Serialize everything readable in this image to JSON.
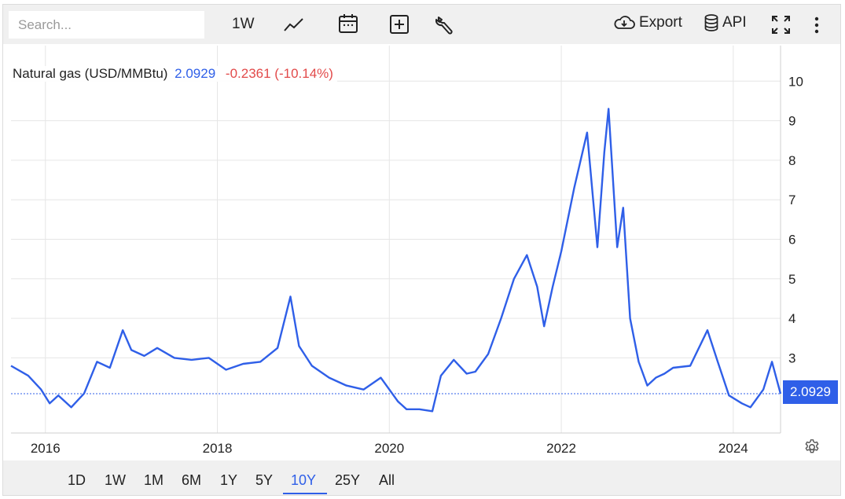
{
  "toolbar": {
    "search_placeholder": "Search...",
    "interval_label": "1W",
    "export_label": "Export",
    "api_label": "API",
    "icons": [
      "line-chart-icon",
      "calendar-icon",
      "add-box-icon",
      "wrench-icon",
      "cloud-download-icon",
      "database-icon",
      "fullscreen-icon",
      "more-vertical-icon"
    ]
  },
  "legend": {
    "name": "Natural gas (USD/MMBtu)",
    "last": "2.0929",
    "change": "-0.2361 (-10.14%)"
  },
  "price_tag": "2.0929",
  "colors": {
    "series": "#2f5fe8",
    "negative": "#e24a4a",
    "grid": "#e6e6e6",
    "toolbar_bg": "#f0f0f0"
  },
  "range_buttons": [
    "1D",
    "1W",
    "1M",
    "6M",
    "1Y",
    "5Y",
    "10Y",
    "25Y",
    "All"
  ],
  "active_range": "10Y",
  "chart_data": {
    "type": "line",
    "series": [
      {
        "name": "Natural gas (USD/MMBtu)",
        "x": [
          2015.6,
          2015.8,
          2015.95,
          2016.05,
          2016.15,
          2016.3,
          2016.45,
          2016.6,
          2016.75,
          2016.9,
          2017.0,
          2017.15,
          2017.3,
          2017.5,
          2017.7,
          2017.9,
          2018.1,
          2018.3,
          2018.5,
          2018.7,
          2018.85,
          2018.95,
          2019.1,
          2019.3,
          2019.5,
          2019.7,
          2019.9,
          2020.1,
          2020.2,
          2020.35,
          2020.5,
          2020.6,
          2020.75,
          2020.9,
          2021.0,
          2021.15,
          2021.3,
          2021.45,
          2021.6,
          2021.72,
          2021.8,
          2021.9,
          2022.0,
          2022.15,
          2022.3,
          2022.42,
          2022.5,
          2022.55,
          2022.65,
          2022.72,
          2022.8,
          2022.9,
          2023.0,
          2023.1,
          2023.2,
          2023.3,
          2023.5,
          2023.7,
          2023.82,
          2023.95,
          2024.1,
          2024.2,
          2024.35,
          2024.45,
          2024.55
        ],
        "values": [
          2.8,
          2.55,
          2.2,
          1.85,
          2.05,
          1.75,
          2.1,
          2.9,
          2.75,
          3.7,
          3.2,
          3.05,
          3.25,
          3.0,
          2.95,
          3.0,
          2.7,
          2.85,
          2.9,
          3.25,
          4.55,
          3.3,
          2.8,
          2.5,
          2.3,
          2.2,
          2.5,
          1.9,
          1.7,
          1.7,
          1.65,
          2.55,
          2.95,
          2.6,
          2.65,
          3.1,
          4.0,
          5.0,
          5.6,
          4.8,
          3.8,
          4.8,
          5.7,
          7.3,
          8.7,
          5.8,
          8.2,
          9.3,
          5.8,
          6.8,
          4.0,
          2.9,
          2.3,
          2.5,
          2.6,
          2.75,
          2.8,
          3.7,
          2.9,
          2.05,
          1.85,
          1.75,
          2.2,
          2.9,
          2.0929
        ]
      }
    ],
    "xlim": [
      2015.6,
      2024.55
    ],
    "ylim": [
      1.1,
      10.9
    ],
    "x_ticks": [
      "2016",
      "2018",
      "2020",
      "2022",
      "2024"
    ],
    "x_tick_values": [
      2016,
      2018,
      2020,
      2022,
      2024
    ],
    "y_ticks": [
      3,
      4,
      5,
      6,
      7,
      8,
      9,
      10
    ],
    "last_value": 2.0929,
    "grid": true,
    "y_axis_side": "right",
    "legend_placement": "top-left"
  }
}
